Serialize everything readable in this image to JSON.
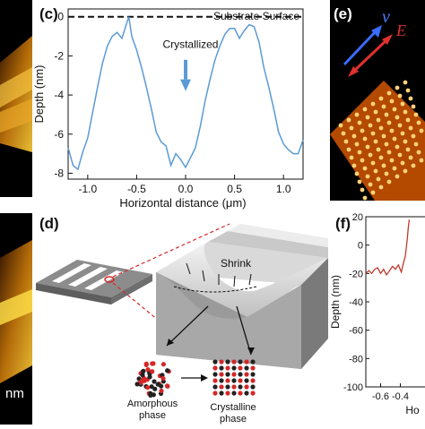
{
  "panels": {
    "c": {
      "label": "(c)"
    },
    "d": {
      "label": "(d)"
    },
    "e": {
      "label": "(e)"
    },
    "f": {
      "label": "(f)"
    }
  },
  "left_strip": {
    "scale_text": "nm"
  },
  "panel_e_glyphs": {
    "v": "v",
    "e": "E"
  },
  "schematic": {
    "shrink": "Shrink",
    "amorphous_line1": "Amorphous",
    "amorphous_line2": "phase",
    "crystalline_line1": "Crystalline",
    "crystalline_line2": "phase"
  },
  "colors": {
    "line_c": "#5b9bd5",
    "line_f": "#c0392b",
    "arrow_blue": "#5b9bd5",
    "atom_red": "#d62728",
    "atom_dark": "#222222"
  },
  "chart_data": [
    {
      "type": "line",
      "panel": "c",
      "xlabel": "Horizontal distance (μm)",
      "ylabel": "Depth (nm)",
      "xlim": [
        -1.2,
        1.2
      ],
      "ylim": [
        -8.3,
        0.4
      ],
      "xticks": [
        "-1.0",
        "-0.5",
        "0.0",
        "0.5",
        "1.0"
      ],
      "yticks": [
        "0",
        "-2",
        "-4",
        "-6",
        "-8"
      ],
      "annotations": [
        "Substrate Surface",
        "Crystallized"
      ],
      "series": [
        {
          "x": [
            -1.2,
            -1.15,
            -1.1,
            -1.05,
            -1.0,
            -0.95,
            -0.9,
            -0.85,
            -0.8,
            -0.75,
            -0.7,
            -0.65,
            -0.6,
            -0.58,
            -0.55,
            -0.5,
            -0.45,
            -0.4,
            -0.35,
            -0.3,
            -0.25,
            -0.2,
            -0.15,
            -0.1,
            -0.05,
            0.0,
            0.05,
            0.1,
            0.15,
            0.2,
            0.25,
            0.3,
            0.35,
            0.4,
            0.45,
            0.5,
            0.55,
            0.6,
            0.65,
            0.7,
            0.75,
            0.8,
            0.85,
            0.9,
            0.95,
            1.0,
            1.05,
            1.1,
            1.15,
            1.2
          ],
          "y": [
            -6.7,
            -7.6,
            -7.8,
            -6.9,
            -6.2,
            -4.9,
            -3.6,
            -2.4,
            -1.5,
            -1.0,
            -0.8,
            -1.1,
            -0.3,
            0.0,
            -1.0,
            -1.7,
            -2.6,
            -3.6,
            -4.7,
            -5.9,
            -6.4,
            -6.6,
            -7.6,
            -7.0,
            -7.3,
            -7.7,
            -7.2,
            -6.7,
            -5.6,
            -4.3,
            -3.2,
            -2.2,
            -1.5,
            -0.9,
            -0.6,
            -0.6,
            -1.1,
            -0.7,
            -0.4,
            -0.5,
            -1.3,
            -2.6,
            -3.6,
            -4.7,
            -5.9,
            -6.5,
            -6.8,
            -7.0,
            -7.0,
            -6.3
          ]
        }
      ]
    },
    {
      "type": "line",
      "panel": "f",
      "xlabel": "Ho",
      "ylabel": "Depth (nm)",
      "xlim": [
        -0.75,
        -0.15
      ],
      "ylim": [
        -100,
        20
      ],
      "xticks": [
        "-0.6",
        "-0.4"
      ],
      "yticks": [
        "20",
        "0",
        "-20",
        "-40",
        "-60",
        "-80",
        "-100"
      ],
      "series": [
        {
          "x": [
            -0.75,
            -0.72,
            -0.69,
            -0.66,
            -0.63,
            -0.6,
            -0.57,
            -0.54,
            -0.51,
            -0.48,
            -0.45,
            -0.42,
            -0.39,
            -0.37,
            -0.35,
            -0.34,
            -0.33,
            -0.32,
            -0.31
          ],
          "y": [
            -20,
            -18,
            -20,
            -17,
            -16,
            -20,
            -17,
            -21,
            -18,
            -15,
            -17,
            -14,
            -19,
            -13,
            -8,
            -2,
            4,
            12,
            18
          ]
        }
      ]
    }
  ]
}
